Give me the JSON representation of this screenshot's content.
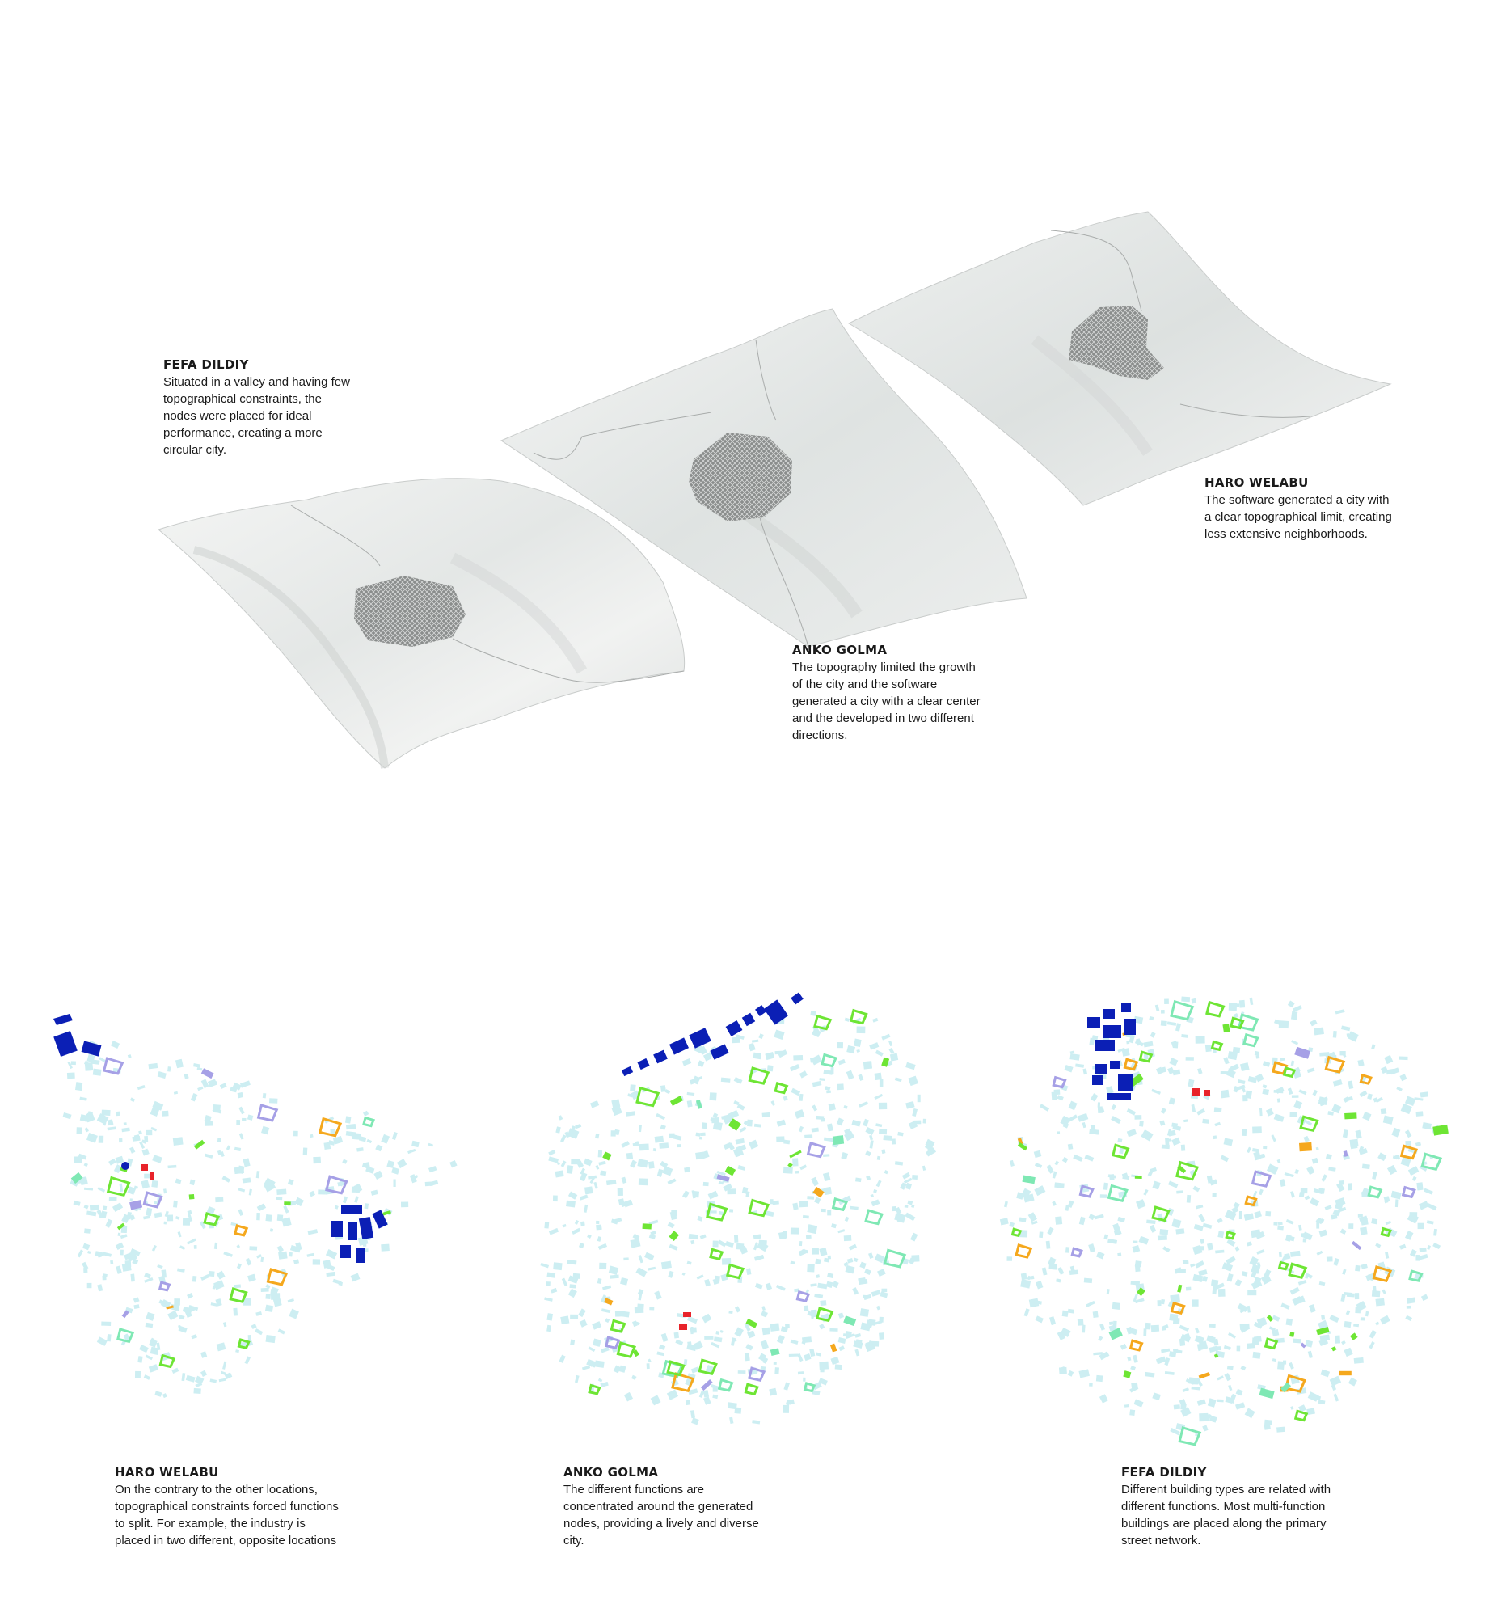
{
  "colors": {
    "accent": "#e2231a",
    "industry": "#0b1fb5",
    "commercial": "#f5a81d",
    "green": "#6ee534",
    "civic": "#a6a0e6",
    "mixed": "#7fe8b4",
    "core": "#e8232a",
    "residential": "#cdeef2"
  },
  "top_captions": {
    "fefa": {
      "title": "FEFA DILDIY",
      "body": "Situated in a valley and having few topographical constraints, the nodes were placed for ideal performance, creating a more circular city."
    },
    "anko": {
      "title": "ANKO GOLMA",
      "body": "The topography limited the growth of the city and the software generated a city with a clear center and the developed in two different directions."
    },
    "haro": {
      "title": "HARO WELABU",
      "body": "The software generated a city with a clear topographical limit, creating less extensive neighborhoods."
    }
  },
  "bottom_captions": {
    "haro": {
      "title": "HARO WELABU",
      "body": "On the contrary to the other locations, topographical constraints forced functions to split. For example, the industry is placed in two different, opposite locations"
    },
    "anko": {
      "title": "ANKO GOLMA",
      "body": "The different functions are concentrated around the generated nodes, providing a lively and diverse city."
    },
    "fefa": {
      "title": "FEFA DILDIY",
      "body": "Different building types are related with different functions. Most multi-function buildings are placed along the primary street network."
    }
  }
}
